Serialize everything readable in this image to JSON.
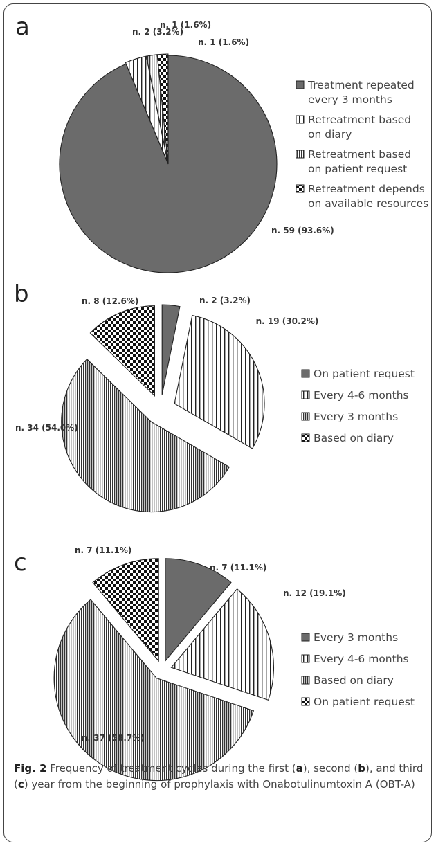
{
  "colors": {
    "dark": "#6b6b6b",
    "stroke": "#222222",
    "frame": "#444444"
  },
  "chart_data": [
    {
      "type": "pie",
      "panel": "a",
      "slices": [
        {
          "name": "Treatment repeated every 3 months",
          "value": 59,
          "label": "n. 59 (93.6%)",
          "pattern": "dark"
        },
        {
          "name": "Retreatment based on diary",
          "value": 2,
          "label": "n. 2 (3.2%)",
          "pattern": "vlines-wide"
        },
        {
          "name": "Retreatment based on patient request",
          "value": 1,
          "label": "n. 1 (1.6%)",
          "pattern": "vlines"
        },
        {
          "name": "Retreatment depends on available resources",
          "value": 1,
          "label": "n. 1 (1.6%)",
          "pattern": "checker"
        }
      ],
      "legend": [
        {
          "lines": [
            "Treatment repeated",
            "every 3 months"
          ],
          "pattern": "dark"
        },
        {
          "lines": [
            "Retreatment based",
            "on diary"
          ],
          "pattern": "vlines-wide"
        },
        {
          "lines": [
            "Retreatment based",
            "on patient request"
          ],
          "pattern": "vlines"
        },
        {
          "lines": [
            "Retreatment depends",
            "on available resources"
          ],
          "pattern": "checker"
        }
      ]
    },
    {
      "type": "pie",
      "panel": "b",
      "slices": [
        {
          "name": "On patient request",
          "value": 2,
          "label": "n. 2 (3.2%)",
          "pattern": "dark"
        },
        {
          "name": "Every 4-6 months",
          "value": 19,
          "label": "n. 19 (30.2%)",
          "pattern": "vlines-wide"
        },
        {
          "name": "Every 3 months",
          "value": 34,
          "label": "n. 34 (54.0%)",
          "pattern": "vlines"
        },
        {
          "name": "Based on diary",
          "value": 8,
          "label": "n. 8 (12.6%)",
          "pattern": "checker"
        }
      ],
      "legend": [
        {
          "lines": [
            "On patient request"
          ],
          "pattern": "dark"
        },
        {
          "lines": [
            "Every 4-6 months"
          ],
          "pattern": "vlines-wide"
        },
        {
          "lines": [
            "Every 3 months"
          ],
          "pattern": "vlines"
        },
        {
          "lines": [
            "Based on diary"
          ],
          "pattern": "checker"
        }
      ]
    },
    {
      "type": "pie",
      "panel": "c",
      "slices": [
        {
          "name": "Every 3 months",
          "value": 7,
          "label": "n. 7 (11.1%)",
          "pattern": "dark"
        },
        {
          "name": "Every 4-6 months",
          "value": 12,
          "label": "n. 12 (19.1%)",
          "pattern": "vlines-wide"
        },
        {
          "name": "Based on diary",
          "value": 37,
          "label": "n. 37 (58.7%)",
          "pattern": "vlines"
        },
        {
          "name": "On patient request",
          "value": 7,
          "label": "n. 7 (11.1%)",
          "pattern": "checker"
        }
      ],
      "legend": [
        {
          "lines": [
            "Every 3 months"
          ],
          "pattern": "dark"
        },
        {
          "lines": [
            "Every 4-6 months"
          ],
          "pattern": "vlines-wide"
        },
        {
          "lines": [
            "Based on diary"
          ],
          "pattern": "vlines"
        },
        {
          "lines": [
            "On patient request"
          ],
          "pattern": "checker"
        }
      ]
    }
  ],
  "caption": {
    "fig_label": "Fig. 2",
    "text_1": " Frequency of treatment cycles during the first (",
    "letter_a": "a",
    "text_2": "), second (",
    "letter_b": "b",
    "text_3": "), and third (",
    "letter_c": "c",
    "text_4": ") year from the beginning of prophylaxis with Onabotulinumtoxin A (OBT-A)"
  }
}
